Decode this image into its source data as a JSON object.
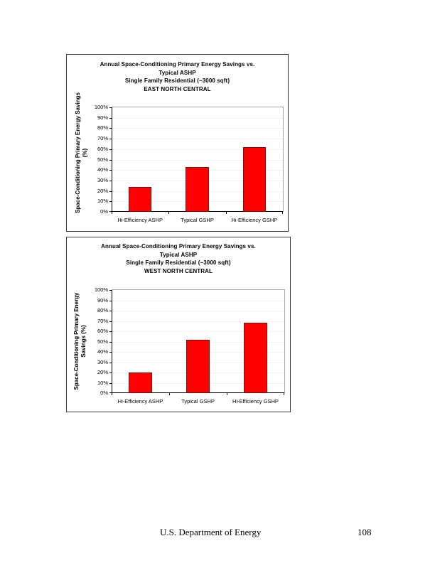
{
  "chart_data": [
    {
      "type": "bar",
      "title": "Annual Space-Conditioning Primary Energy Savings vs. Typical ASHP Single Family Residential (~3000 sqft) EAST NORTH CENTRAL",
      "title_lines": [
        "Annual Space-Conditioning Primary Energy Savings vs.",
        "Typical ASHP",
        "Single Family Residential (~3000 sqft)",
        "EAST NORTH CENTRAL"
      ],
      "xlabel": "",
      "ylabel": "Space-Conditioning Primary Energy Savings (%)",
      "ylabel_lines": [
        "Space-Conditioning Primary Energy Savings",
        "(%)"
      ],
      "categories": [
        "Hi-Efficiency ASHP",
        "Typical GSHP",
        "Hi-Efficiency GSHP"
      ],
      "values": [
        24,
        43,
        62
      ],
      "value_unit": "%",
      "ylim": [
        0,
        100
      ],
      "yticks": [
        "0%",
        "10%",
        "20%",
        "30%",
        "40%",
        "50%",
        "60%",
        "70%",
        "80%",
        "90%",
        "100%"
      ],
      "grid": true,
      "legend": null,
      "bar_color": "#ff0000"
    },
    {
      "type": "bar",
      "title": "Annual Space-Conditioning Primary Energy Savings vs. Typical ASHP Single Family Residential (~3000 sqft) WEST NORTH CENTRAL",
      "title_lines": [
        "Annual Space-Conditioning Primary Energy Savings vs.",
        "Typical ASHP",
        "Single Family Residential (~3000 sqft)",
        "WEST NORTH CENTRAL"
      ],
      "xlabel": "",
      "ylabel": "Space-Conditioning Primary Energy Savings (%)",
      "ylabel_lines": [
        "Space-Conditioning Primary Energy",
        "Savings (%)"
      ],
      "categories": [
        "Hi-Efficiency ASHP",
        "Typical GSHP",
        "Hi-Efficiency GSHP"
      ],
      "values": [
        20,
        52,
        68
      ],
      "value_unit": "%",
      "ylim": [
        0,
        100
      ],
      "yticks": [
        "0%",
        "10%",
        "20%",
        "30%",
        "40%",
        "50%",
        "60%",
        "70%",
        "80%",
        "90%",
        "100%"
      ],
      "grid": true,
      "legend": null,
      "bar_color": "#ff0000"
    }
  ],
  "footer": {
    "organization": "U.S. Department of Energy",
    "page_number": "108"
  }
}
